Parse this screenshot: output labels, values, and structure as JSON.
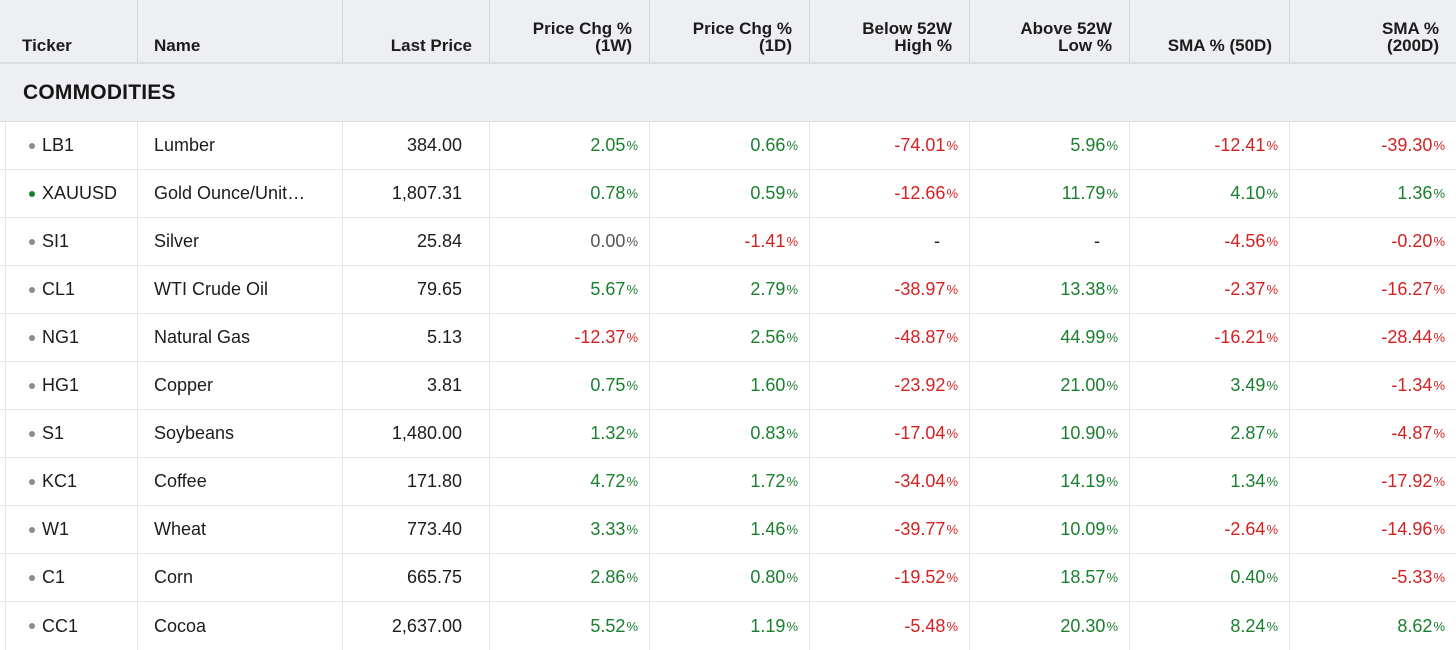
{
  "columns": [
    {
      "label_1": "",
      "label_2": "Ticker"
    },
    {
      "label_1": "",
      "label_2": "Name"
    },
    {
      "label_1": "",
      "label_2": "Last Price"
    },
    {
      "label_1": "Price Chg %",
      "label_2": "(1W)"
    },
    {
      "label_1": "Price Chg %",
      "label_2": "(1D)"
    },
    {
      "label_1": "Below 52W",
      "label_2": "High %"
    },
    {
      "label_1": "Above 52W",
      "label_2": "Low %"
    },
    {
      "label_1": "",
      "label_2": "SMA % (50D)"
    },
    {
      "label_1": "SMA %",
      "label_2": "(200D)"
    }
  ],
  "section": {
    "title": "COMMODITIES"
  },
  "colors": {
    "positive": "#1a7f2f",
    "negative": "#d32222",
    "neutral": "#555555",
    "dot_default": "#8a8a8a",
    "dot_active": "#1a7f2f"
  },
  "rows": [
    {
      "ticker": "LB1",
      "dot": "gray",
      "name": "Lumber",
      "last": "384.00",
      "chg1w": "2.05",
      "chg1d": "0.66",
      "below52": "-74.01",
      "above52": "5.96",
      "sma50": "-12.41",
      "sma200": "-39.30"
    },
    {
      "ticker": "XAUUSD",
      "dot": "green",
      "name": "Gold Ounce/Unit…",
      "last": "1,807.31",
      "chg1w": "0.78",
      "chg1d": "0.59",
      "below52": "-12.66",
      "above52": "11.79",
      "sma50": "4.10",
      "sma200": "1.36"
    },
    {
      "ticker": "SI1",
      "dot": "gray",
      "name": "Silver",
      "last": "25.84",
      "chg1w": "0.00",
      "chg1d": "-1.41",
      "below52": "-",
      "above52": "-",
      "sma50": "-4.56",
      "sma200": "-0.20"
    },
    {
      "ticker": "CL1",
      "dot": "gray",
      "name": "WTI Crude Oil",
      "last": "79.65",
      "chg1w": "5.67",
      "chg1d": "2.79",
      "below52": "-38.97",
      "above52": "13.38",
      "sma50": "-2.37",
      "sma200": "-16.27"
    },
    {
      "ticker": "NG1",
      "dot": "gray",
      "name": "Natural Gas",
      "last": "5.13",
      "chg1w": "-12.37",
      "chg1d": "2.56",
      "below52": "-48.87",
      "above52": "44.99",
      "sma50": "-16.21",
      "sma200": "-28.44"
    },
    {
      "ticker": "HG1",
      "dot": "gray",
      "name": "Copper",
      "last": "3.81",
      "chg1w": "0.75",
      "chg1d": "1.60",
      "below52": "-23.92",
      "above52": "21.00",
      "sma50": "3.49",
      "sma200": "-1.34"
    },
    {
      "ticker": "S1",
      "dot": "gray",
      "name": "Soybeans",
      "last": "1,480.00",
      "chg1w": "1.32",
      "chg1d": "0.83",
      "below52": "-17.04",
      "above52": "10.90",
      "sma50": "2.87",
      "sma200": "-4.87"
    },
    {
      "ticker": "KC1",
      "dot": "gray",
      "name": "Coffee",
      "last": "171.80",
      "chg1w": "4.72",
      "chg1d": "1.72",
      "below52": "-34.04",
      "above52": "14.19",
      "sma50": "1.34",
      "sma200": "-17.92"
    },
    {
      "ticker": "W1",
      "dot": "gray",
      "name": "Wheat",
      "last": "773.40",
      "chg1w": "3.33",
      "chg1d": "1.46",
      "below52": "-39.77",
      "above52": "10.09",
      "sma50": "-2.64",
      "sma200": "-14.96"
    },
    {
      "ticker": "C1",
      "dot": "gray",
      "name": "Corn",
      "last": "665.75",
      "chg1w": "2.86",
      "chg1d": "0.80",
      "below52": "-19.52",
      "above52": "18.57",
      "sma50": "0.40",
      "sma200": "-5.33"
    },
    {
      "ticker": "CC1",
      "dot": "gray",
      "name": "Cocoa",
      "last": "2,637.00",
      "chg1w": "5.52",
      "chg1d": "1.19",
      "below52": "-5.48",
      "above52": "20.30",
      "sma50": "8.24",
      "sma200": "8.62"
    }
  ]
}
